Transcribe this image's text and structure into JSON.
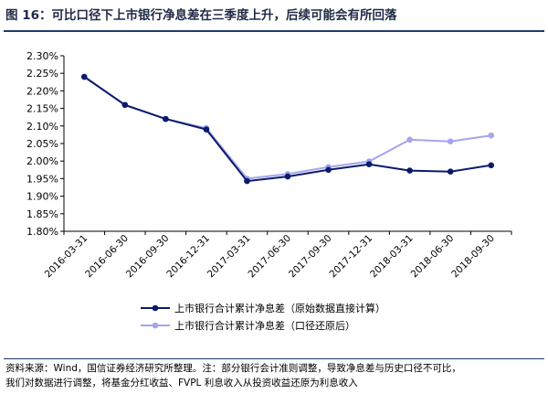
{
  "figure": {
    "title": "图 16：可比口径下上市银行净息差在三季度上升，后续可能会有所回落",
    "source_line1": "资料来源：Wind，国信证券经济研究所整理。注：部分银行会计准则调整，导致净息差与历史口径不可比，",
    "source_line2": "我们对数据进行调整，将基金分红收益、FVPL 利息收入从投资收益还原为利息收入"
  },
  "chart_data": {
    "type": "line",
    "title": "",
    "xlabel": "",
    "ylabel": "",
    "x": [
      "2016-03-31",
      "2016-06-30",
      "2016-09-30",
      "2016-12-31",
      "2017-03-31",
      "2017-06-30",
      "2017-09-30",
      "2017-12-31",
      "2018-03-31",
      "2018-06-30",
      "2018-09-30"
    ],
    "ylim": [
      1.8,
      2.3
    ],
    "yticks": [
      "2.30%",
      "2.25%",
      "2.20%",
      "2.15%",
      "2.10%",
      "2.05%",
      "2.00%",
      "1.95%",
      "1.90%",
      "1.85%",
      "1.80%"
    ],
    "ytick_values": [
      2.3,
      2.25,
      2.2,
      2.15,
      2.1,
      2.05,
      2.0,
      1.95,
      1.9,
      1.85,
      1.8
    ],
    "grid": false,
    "legend_position": "bottom",
    "series": [
      {
        "name": "上市银行合计累计净息差（原始数据直接计算）",
        "color": "#0c1a6b",
        "values": [
          2.24,
          2.16,
          2.12,
          2.09,
          1.943,
          1.956,
          1.975,
          1.991,
          1.973,
          1.97,
          1.988
        ]
      },
      {
        "name": "上市银行合计累计净息差（口径还原后）",
        "color": "#a3a6ee",
        "values": [
          2.24,
          2.16,
          2.12,
          2.094,
          1.95,
          1.963,
          1.983,
          1.999,
          2.061,
          2.056,
          2.073
        ]
      }
    ]
  }
}
